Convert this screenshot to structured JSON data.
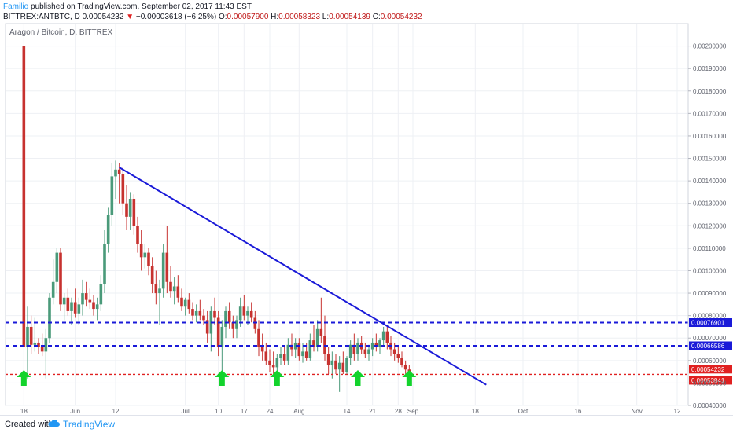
{
  "header": {
    "author": "Familio",
    "published": "published on TradingView.com, September 02, 2017 11:43 EST",
    "symbol_line": "BITTREX:ANTBTC, D",
    "last": "0.00054232",
    "arrow": "▼",
    "change": "−0.00003618 (−6.25%)",
    "o_label": "O:",
    "o": "0.00057900",
    "h_label": "H:",
    "h": "0.00058323",
    "l_label": "L:",
    "l": "0.00054139",
    "c_label": "C:",
    "c": "0.00054232"
  },
  "footer": {
    "created": "Created with",
    "brand": "TradingView"
  },
  "colors": {
    "up": "#4a9a7a",
    "down": "#c7322f",
    "trend": "#1a1ad8",
    "level": "#1a1ad8",
    "support": "#e02020",
    "arrow": "#13d32c"
  },
  "chart_data": {
    "type": "candlestick",
    "title": "Aragon / Bitcoin, D, BITTREX",
    "ylim": [
      0.0004,
      0.0021
    ],
    "y_ticks": [
      "0.00200000",
      "0.00190000",
      "0.00180000",
      "0.00170000",
      "0.00160000",
      "0.00150000",
      "0.00140000",
      "0.00130000",
      "0.00120000",
      "0.00110000",
      "0.00100000",
      "0.00090000",
      "0.00080000",
      "0.00070000",
      "0.00060000",
      "0.00050000",
      "0.00040000"
    ],
    "x_ticks": [
      {
        "label": "18",
        "date": "2017-05-18"
      },
      {
        "label": "Jun",
        "date": "2017-06-01"
      },
      {
        "label": "12",
        "date": "2017-06-12"
      },
      {
        "label": "Jul",
        "date": "2017-07-01"
      },
      {
        "label": "10",
        "date": "2017-07-10"
      },
      {
        "label": "17",
        "date": "2017-07-17"
      },
      {
        "label": "24",
        "date": "2017-07-24"
      },
      {
        "label": "Aug",
        "date": "2017-08-01"
      },
      {
        "label": "14",
        "date": "2017-08-14"
      },
      {
        "label": "21",
        "date": "2017-08-21"
      },
      {
        "label": "28",
        "date": "2017-08-28"
      },
      {
        "label": "Sep",
        "date": "2017-09-01"
      },
      {
        "label": "18",
        "date": "2017-09-18"
      },
      {
        "label": "Oct",
        "date": "2017-10-01"
      },
      {
        "label": "16",
        "date": "2017-10-16"
      },
      {
        "label": "Nov",
        "date": "2017-11-01"
      },
      {
        "label": "12",
        "date": "2017-11-12"
      }
    ],
    "x_range": [
      "2017-05-13",
      "2017-11-15"
    ],
    "price_levels": [
      {
        "label": "0.00076901",
        "value": 0.00076901,
        "style": "dashed-blue"
      },
      {
        "label": "0.00066586",
        "value": 0.00066586,
        "style": "dashed-blue"
      },
      {
        "label": "0.00054232",
        "value": 0.00054232,
        "style": "last-price"
      },
      {
        "label": "0.00053841",
        "value": 0.00053841,
        "style": "dashed-red"
      }
    ],
    "trendline": {
      "start": {
        "date": "2017-06-13",
        "value": 0.00146
      },
      "end": {
        "date": "2017-09-21",
        "value": 0.000492
      }
    },
    "arrows": [
      "2017-05-18",
      "2017-07-11",
      "2017-07-26",
      "2017-08-17",
      "2017-08-31"
    ],
    "candles": [
      [
        "2017-05-18",
        0.002,
        0.002,
        0.00066,
        0.00066
      ],
      [
        "2017-05-19",
        0.00066,
        0.00084,
        0.00052,
        0.00075
      ],
      [
        "2017-05-20",
        0.00075,
        0.0008,
        0.00063,
        0.00067
      ],
      [
        "2017-05-21",
        0.00067,
        0.00079,
        0.00064,
        0.00068
      ],
      [
        "2017-05-22",
        0.00068,
        0.0007,
        0.00063,
        0.00066
      ],
      [
        "2017-05-23",
        0.00066,
        0.00072,
        0.00062,
        0.00064
      ],
      [
        "2017-05-24",
        0.00064,
        0.00074,
        0.00052,
        0.0007
      ],
      [
        "2017-05-25",
        0.0007,
        0.0009,
        0.00068,
        0.00088
      ],
      [
        "2017-05-26",
        0.00088,
        0.00105,
        0.00085,
        0.00095
      ],
      [
        "2017-05-27",
        0.00095,
        0.0011,
        0.0009,
        0.00108
      ],
      [
        "2017-05-28",
        0.00108,
        0.0011,
        0.00082,
        0.00085
      ],
      [
        "2017-05-29",
        0.00085,
        0.0009,
        0.00078,
        0.00088
      ],
      [
        "2017-05-30",
        0.00088,
        0.00092,
        0.0008,
        0.00082
      ],
      [
        "2017-05-31",
        0.00082,
        0.00088,
        0.00076,
        0.00086
      ],
      [
        "2017-06-01",
        0.00086,
        0.00092,
        0.00079,
        0.00081
      ],
      [
        "2017-06-02",
        0.00081,
        0.00088,
        0.00076,
        0.00085
      ],
      [
        "2017-06-03",
        0.00085,
        0.00096,
        0.0008,
        0.0009
      ],
      [
        "2017-06-04",
        0.0009,
        0.00095,
        0.00084,
        0.00087
      ],
      [
        "2017-06-05",
        0.00087,
        0.00092,
        0.00083,
        0.00086
      ],
      [
        "2017-06-06",
        0.00086,
        0.00089,
        0.0008,
        0.00083
      ],
      [
        "2017-06-07",
        0.00083,
        0.00088,
        0.00078,
        0.00085
      ],
      [
        "2017-06-08",
        0.00085,
        0.00098,
        0.00082,
        0.00094
      ],
      [
        "2017-06-09",
        0.00094,
        0.00118,
        0.0009,
        0.00112
      ],
      [
        "2017-06-10",
        0.00112,
        0.00128,
        0.00108,
        0.00125
      ],
      [
        "2017-06-11",
        0.00125,
        0.00148,
        0.0012,
        0.00142
      ],
      [
        "2017-06-12",
        0.00142,
        0.00149,
        0.00132,
        0.00145
      ],
      [
        "2017-06-13",
        0.00145,
        0.00148,
        0.0013,
        0.00143
      ],
      [
        "2017-06-14",
        0.00143,
        0.00146,
        0.00125,
        0.0013
      ],
      [
        "2017-06-15",
        0.0013,
        0.00138,
        0.00118,
        0.00124
      ],
      [
        "2017-06-16",
        0.00124,
        0.00135,
        0.00118,
        0.00132
      ],
      [
        "2017-06-17",
        0.00132,
        0.00134,
        0.00116,
        0.0012
      ],
      [
        "2017-06-18",
        0.0012,
        0.00124,
        0.00108,
        0.00112
      ],
      [
        "2017-06-19",
        0.00112,
        0.00118,
        0.001,
        0.00106
      ],
      [
        "2017-06-20",
        0.00106,
        0.00112,
        0.00101,
        0.00108
      ],
      [
        "2017-06-21",
        0.00108,
        0.0011,
        0.00098,
        0.00102
      ],
      [
        "2017-06-22",
        0.00102,
        0.00106,
        0.0009,
        0.00094
      ],
      [
        "2017-06-23",
        0.00094,
        0.001,
        0.00085,
        0.0009
      ],
      [
        "2017-06-24",
        0.0009,
        0.00096,
        0.00076,
        0.00092
      ],
      [
        "2017-06-25",
        0.00092,
        0.00112,
        0.00088,
        0.00108
      ],
      [
        "2017-06-26",
        0.00108,
        0.0012,
        0.0009,
        0.00095
      ],
      [
        "2017-06-27",
        0.00095,
        0.00102,
        0.00088,
        0.00091
      ],
      [
        "2017-06-28",
        0.00091,
        0.00097,
        0.00085,
        0.00093
      ],
      [
        "2017-06-29",
        0.00093,
        0.00098,
        0.00086,
        0.00088
      ],
      [
        "2017-06-30",
        0.00088,
        0.00092,
        0.00082,
        0.00084
      ],
      [
        "2017-07-01",
        0.00084,
        0.00088,
        0.0008,
        0.00087
      ],
      [
        "2017-07-02",
        0.00087,
        0.0009,
        0.00081,
        0.00083
      ],
      [
        "2017-07-03",
        0.00083,
        0.00086,
        0.00078,
        0.0008
      ],
      [
        "2017-07-04",
        0.0008,
        0.00085,
        0.00077,
        0.00082
      ],
      [
        "2017-07-05",
        0.00082,
        0.00087,
        0.00078,
        0.0008
      ],
      [
        "2017-07-06",
        0.0008,
        0.00083,
        0.00076,
        0.00078
      ],
      [
        "2017-07-07",
        0.00078,
        0.00082,
        0.00068,
        0.00072
      ],
      [
        "2017-07-08",
        0.00072,
        0.00084,
        0.00064,
        0.00082
      ],
      [
        "2017-07-09",
        0.00082,
        0.00088,
        0.00076,
        0.00079
      ],
      [
        "2017-07-10",
        0.00079,
        0.00082,
        0.00062,
        0.00066
      ],
      [
        "2017-07-11",
        0.00066,
        0.00078,
        0.00054,
        0.00075
      ],
      [
        "2017-07-12",
        0.00075,
        0.00084,
        0.0007,
        0.00082
      ],
      [
        "2017-07-13",
        0.00082,
        0.00086,
        0.00074,
        0.00077
      ],
      [
        "2017-07-14",
        0.00077,
        0.0008,
        0.0007,
        0.00074
      ],
      [
        "2017-07-15",
        0.00074,
        0.0008,
        0.0007,
        0.00078
      ],
      [
        "2017-07-16",
        0.00078,
        0.00088,
        0.00075,
        0.00084
      ],
      [
        "2017-07-17",
        0.00084,
        0.00089,
        0.00078,
        0.0008
      ],
      [
        "2017-07-18",
        0.0008,
        0.00084,
        0.00076,
        0.00082
      ],
      [
        "2017-07-19",
        0.00082,
        0.00086,
        0.00077,
        0.00079
      ],
      [
        "2017-07-20",
        0.00079,
        0.00082,
        0.00072,
        0.00074
      ],
      [
        "2017-07-21",
        0.00074,
        0.00078,
        0.00062,
        0.00066
      ],
      [
        "2017-07-22",
        0.00066,
        0.00072,
        0.0006,
        0.00064
      ],
      [
        "2017-07-23",
        0.00064,
        0.00068,
        0.00058,
        0.0006
      ],
      [
        "2017-07-24",
        0.0006,
        0.00065,
        0.00055,
        0.00058
      ],
      [
        "2017-07-25",
        0.00058,
        0.00064,
        0.00054,
        0.00057
      ],
      [
        "2017-07-26",
        0.00057,
        0.00063,
        0.00054,
        0.00061
      ],
      [
        "2017-07-27",
        0.00061,
        0.00066,
        0.00058,
        0.00063
      ],
      [
        "2017-07-28",
        0.00063,
        0.00066,
        0.00058,
        0.0006
      ],
      [
        "2017-07-29",
        0.0006,
        0.0007,
        0.00058,
        0.00067
      ],
      [
        "2017-07-30",
        0.00067,
        0.00072,
        0.00062,
        0.00065
      ],
      [
        "2017-07-31",
        0.00065,
        0.0007,
        0.00061,
        0.00068
      ],
      [
        "2017-08-01",
        0.00068,
        0.0007,
        0.0006,
        0.00062
      ],
      [
        "2017-08-02",
        0.00062,
        0.00068,
        0.00059,
        0.00064
      ],
      [
        "2017-08-03",
        0.00064,
        0.00068,
        0.0006,
        0.00061
      ],
      [
        "2017-08-04",
        0.00061,
        0.00072,
        0.0006,
        0.00069
      ],
      [
        "2017-08-05",
        0.00069,
        0.00076,
        0.00064,
        0.00066
      ],
      [
        "2017-08-06",
        0.00066,
        0.00078,
        0.00064,
        0.00074
      ],
      [
        "2017-08-07",
        0.00074,
        0.00088,
        0.00068,
        0.00071
      ],
      [
        "2017-08-08",
        0.00071,
        0.0008,
        0.0006,
        0.00063
      ],
      [
        "2017-08-09",
        0.00063,
        0.00066,
        0.00054,
        0.00058
      ],
      [
        "2017-08-10",
        0.00058,
        0.00064,
        0.00052,
        0.0006
      ],
      [
        "2017-08-11",
        0.0006,
        0.00063,
        0.00054,
        0.00056
      ],
      [
        "2017-08-12",
        0.00056,
        0.00062,
        0.00046,
        0.00059
      ],
      [
        "2017-08-13",
        0.00059,
        0.00064,
        0.00054,
        0.00055
      ],
      [
        "2017-08-14",
        0.00055,
        0.00062,
        0.00054,
        0.00061
      ],
      [
        "2017-08-15",
        0.00061,
        0.00069,
        0.00058,
        0.00067
      ],
      [
        "2017-08-16",
        0.00067,
        0.00072,
        0.0006,
        0.00063
      ],
      [
        "2017-08-17",
        0.00063,
        0.0007,
        0.0006,
        0.00068
      ],
      [
        "2017-08-18",
        0.00068,
        0.00071,
        0.00063,
        0.00065
      ],
      [
        "2017-08-19",
        0.00065,
        0.00068,
        0.00061,
        0.00063
      ],
      [
        "2017-08-20",
        0.00063,
        0.00067,
        0.0006,
        0.00065
      ],
      [
        "2017-08-21",
        0.00065,
        0.0007,
        0.00062,
        0.00068
      ],
      [
        "2017-08-22",
        0.00068,
        0.00072,
        0.00064,
        0.00066
      ],
      [
        "2017-08-23",
        0.00066,
        0.0007,
        0.00063,
        0.00069
      ],
      [
        "2017-08-24",
        0.00069,
        0.00075,
        0.00066,
        0.00073
      ],
      [
        "2017-08-25",
        0.00073,
        0.00076,
        0.00065,
        0.00068
      ],
      [
        "2017-08-26",
        0.00068,
        0.00071,
        0.00062,
        0.00065
      ],
      [
        "2017-08-27",
        0.00065,
        0.00068,
        0.0006,
        0.00063
      ],
      [
        "2017-08-28",
        0.00063,
        0.00066,
        0.00059,
        0.00061
      ],
      [
        "2017-08-29",
        0.00061,
        0.00064,
        0.00057,
        0.00058
      ],
      [
        "2017-08-30",
        0.00058,
        0.0006,
        0.00054,
        0.00056
      ],
      [
        "2017-08-31",
        0.00056,
        0.00058,
        0.00054,
        0.00055
      ]
    ]
  }
}
